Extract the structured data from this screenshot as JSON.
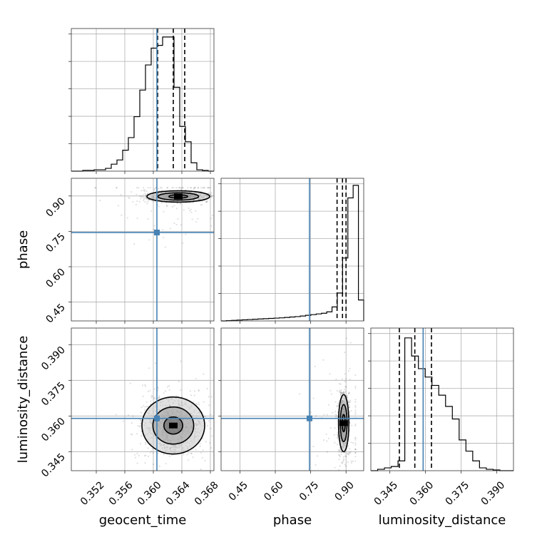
{
  "chart_data": {
    "type": "corner",
    "parameters": [
      "geocent_time",
      "phase",
      "luminosity_distance"
    ],
    "truths": {
      "geocent_time": 0.3605,
      "phase": 0.745,
      "luminosity_distance": 0.359
    },
    "colors": {
      "truth": "#4682b4",
      "hist": "#000000",
      "grid": "#b0b0b0"
    },
    "ranges": {
      "geocent_time": [
        0.3485,
        0.3685
      ],
      "phase": [
        0.37,
        0.975
      ],
      "luminosity_distance": [
        0.337,
        0.397
      ]
    },
    "ticks": {
      "geocent_time": [
        "0.352",
        "0.356",
        "0.360",
        "0.364",
        "0.368"
      ],
      "phase": [
        "0.45",
        "0.60",
        "0.75",
        "0.90"
      ],
      "luminosity_distance": [
        "0.345",
        "0.360",
        "0.375",
        "0.390"
      ]
    },
    "marginals": {
      "geocent_time": {
        "quantiles": [
          0.3606,
          0.3628,
          0.3644
        ],
        "hist": [
          0.0,
          0.0,
          0.005,
          0.005,
          0.01,
          0.01,
          0.02,
          0.05,
          0.08,
          0.15,
          0.24,
          0.39,
          0.58,
          0.76,
          0.88,
          0.9,
          0.96,
          0.96,
          0.6,
          0.32,
          0.21,
          0.06,
          0.01,
          0.005,
          0.0
        ]
      },
      "phase": {
        "quantiles": [
          0.862,
          0.885,
          0.9
        ],
        "hist": [
          0.0,
          0.002,
          0.004,
          0.006,
          0.008,
          0.01,
          0.012,
          0.014,
          0.016,
          0.018,
          0.02,
          0.022,
          0.025,
          0.028,
          0.031,
          0.035,
          0.04,
          0.045,
          0.05,
          0.055,
          0.065,
          0.1,
          0.2,
          0.45,
          0.88,
          0.97,
          0.15
        ]
      },
      "luminosity_distance": {
        "quantiles": [
          0.349,
          0.3555,
          0.3625
        ],
        "hist": [
          0.0,
          0.01,
          0.02,
          0.03,
          0.07,
          0.95,
          0.82,
          0.73,
          0.67,
          0.61,
          0.54,
          0.46,
          0.37,
          0.22,
          0.14,
          0.07,
          0.02,
          0.01,
          0.005,
          0.0,
          0.0
        ]
      }
    },
    "pairs": [
      {
        "x": "geocent_time",
        "y": "phase",
        "center": [
          0.3635,
          0.898
        ],
        "spread": [
          0.0022,
          0.012
        ]
      },
      {
        "x": "geocent_time",
        "y": "luminosity_distance",
        "center": [
          0.3628,
          0.356
        ],
        "spread": [
          0.0022,
          0.006
        ]
      },
      {
        "x": "phase",
        "y": "luminosity_distance",
        "center": [
          0.89,
          0.357
        ],
        "spread": [
          0.011,
          0.006
        ]
      }
    ]
  }
}
